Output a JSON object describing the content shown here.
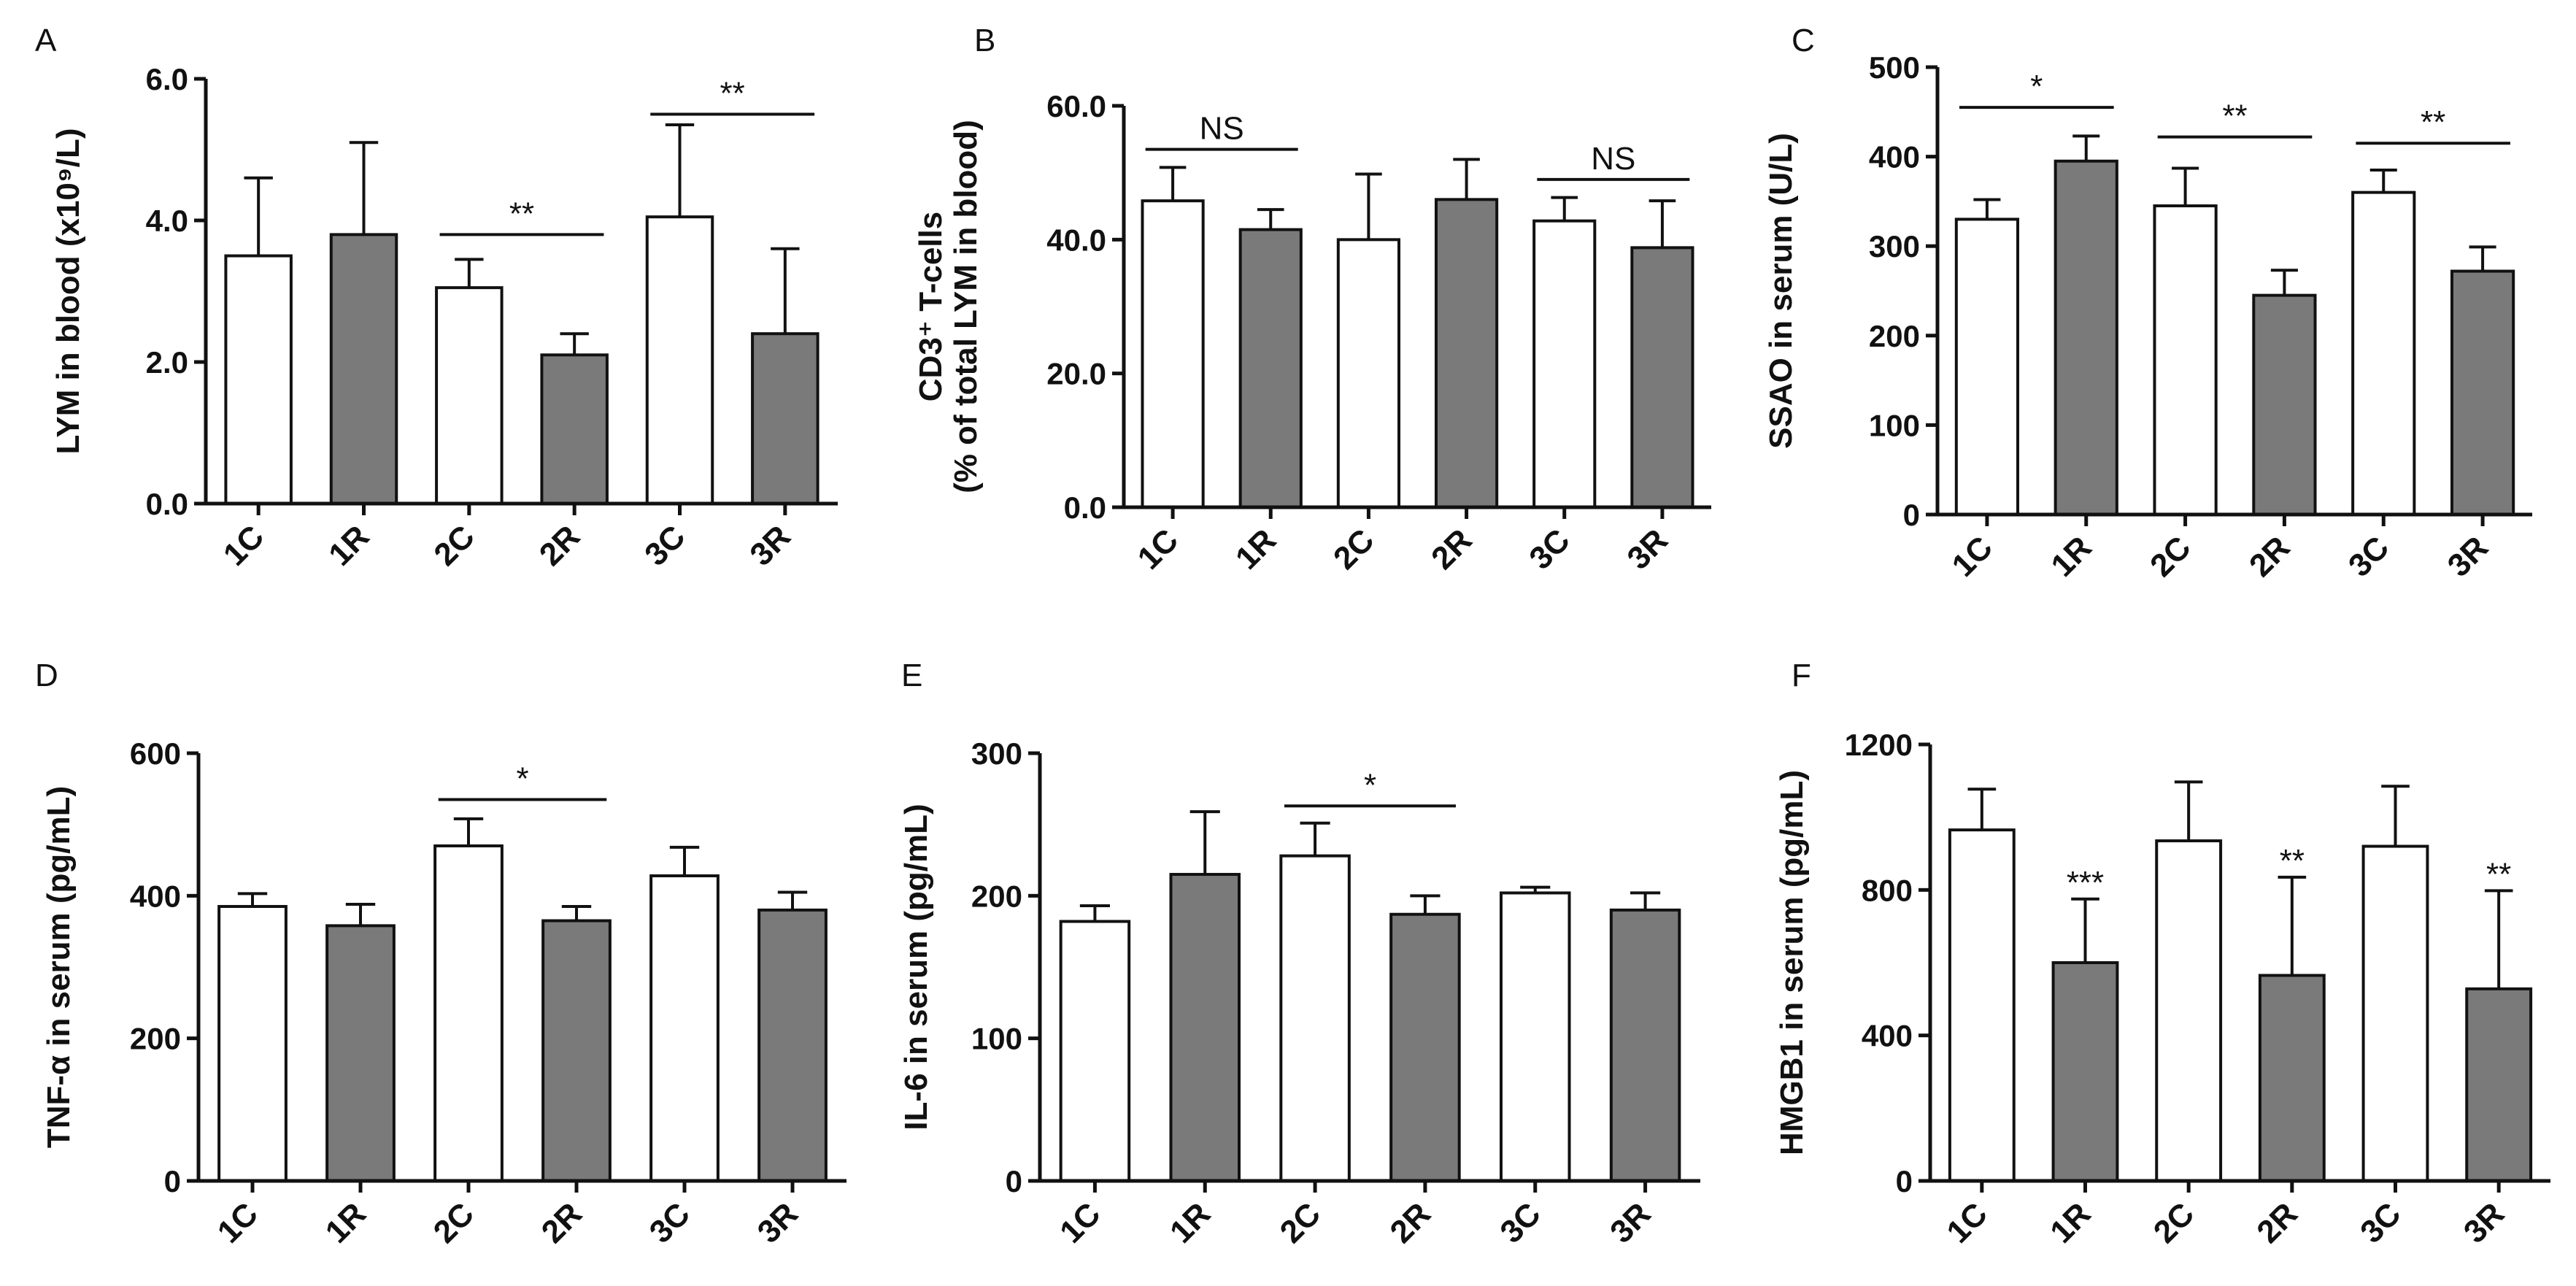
{
  "figure": {
    "colors": {
      "control": "#ffffff",
      "treatment": "#7a7a7a",
      "stroke": "#111111"
    }
  },
  "chart_data": [
    {
      "panel": "A",
      "type": "bar",
      "ylabel": "LYM in blood (x10⁹/L)",
      "ylim": [
        0,
        6
      ],
      "yticks": [
        "0.0",
        "2.0",
        "4.0",
        "6.0"
      ],
      "categories": [
        "1C",
        "1R",
        "2C",
        "2R",
        "3C",
        "3R"
      ],
      "values": [
        3.5,
        3.8,
        3.05,
        2.1,
        4.05,
        2.4
      ],
      "errors": [
        1.1,
        1.3,
        0.4,
        0.3,
        1.3,
        1.2
      ],
      "groups": [
        "C",
        "R",
        "C",
        "R",
        "C",
        "R"
      ],
      "brackets": [
        {
          "from": 2,
          "to": 3,
          "y": 3.8,
          "label": "**"
        },
        {
          "from": 4,
          "to": 5,
          "y": 5.5,
          "label": "**"
        }
      ]
    },
    {
      "panel": "B",
      "type": "bar",
      "ylabel": [
        "CD3⁺ T-cells",
        "(% of total LYM in blood)"
      ],
      "ylim": [
        0,
        60
      ],
      "yticks": [
        "0.0",
        "20.0",
        "40.0",
        "60.0"
      ],
      "categories": [
        "1C",
        "1R",
        "2C",
        "2R",
        "3C",
        "3R"
      ],
      "values": [
        45.8,
        41.5,
        40.0,
        46.0,
        42.8,
        38.8
      ],
      "errors": [
        5,
        3,
        9.8,
        6,
        3.5,
        7
      ],
      "groups": [
        "C",
        "R",
        "C",
        "R",
        "C",
        "R"
      ],
      "brackets": [
        {
          "from": 0,
          "to": 1,
          "y": 53.5,
          "label": "NS"
        },
        {
          "from": 4,
          "to": 5,
          "y": 49,
          "label": "NS"
        }
      ]
    },
    {
      "panel": "C",
      "type": "bar",
      "ylabel": "SSAO in serum (U/L)",
      "ylim": [
        0,
        500
      ],
      "yticks": [
        "0",
        "100",
        "200",
        "300",
        "400",
        "500"
      ],
      "categories": [
        "1C",
        "1R",
        "2C",
        "2R",
        "3C",
        "3R"
      ],
      "values": [
        330,
        395,
        345,
        245,
        360,
        272
      ],
      "errors": [
        22,
        28,
        42,
        28,
        25,
        27
      ],
      "groups": [
        "C",
        "R",
        "C",
        "R",
        "C",
        "R"
      ],
      "brackets": [
        {
          "from": 0,
          "to": 1,
          "y": 455,
          "label": "*"
        },
        {
          "from": 2,
          "to": 3,
          "y": 422,
          "label": "**"
        },
        {
          "from": 4,
          "to": 5,
          "y": 415,
          "label": "**"
        }
      ]
    },
    {
      "panel": "D",
      "type": "bar",
      "ylabel": "TNF-α in serum (pg/mL)",
      "ylim": [
        0,
        600
      ],
      "yticks": [
        "0",
        "200",
        "400",
        "600"
      ],
      "categories": [
        "1C",
        "1R",
        "2C",
        "2R",
        "3C",
        "3R"
      ],
      "values": [
        385,
        358,
        470,
        365,
        428,
        380
      ],
      "errors": [
        18,
        30,
        38,
        20,
        40,
        25
      ],
      "groups": [
        "C",
        "R",
        "C",
        "R",
        "C",
        "R"
      ],
      "brackets": [
        {
          "from": 2,
          "to": 3,
          "y": 535,
          "label": "*"
        }
      ]
    },
    {
      "panel": "E",
      "type": "bar",
      "ylabel": "IL-6 in serum (pg/mL)",
      "ylim": [
        0,
        300
      ],
      "yticks": [
        "0",
        "100",
        "200",
        "300"
      ],
      "categories": [
        "1C",
        "1R",
        "2C",
        "2R",
        "3C",
        "3R"
      ],
      "values": [
        182,
        215,
        228,
        187,
        202,
        190
      ],
      "errors": [
        11,
        44,
        23,
        13,
        4,
        12
      ],
      "groups": [
        "C",
        "R",
        "C",
        "R",
        "C",
        "R"
      ],
      "brackets": [
        {
          "from": 2,
          "to": 3,
          "y": 263,
          "label": "*"
        }
      ]
    },
    {
      "panel": "F",
      "type": "bar",
      "ylabel": "HMGB1 in serum (pg/mL)",
      "ylim": [
        0,
        1200
      ],
      "yticks": [
        "0",
        "400",
        "800",
        "1200"
      ],
      "categories": [
        "1C",
        "1R",
        "2C",
        "2R",
        "3C",
        "3R"
      ],
      "values": [
        965,
        600,
        935,
        565,
        920,
        528
      ],
      "errors": [
        112,
        175,
        162,
        270,
        165,
        270
      ],
      "groups": [
        "C",
        "R",
        "C",
        "R",
        "C",
        "R"
      ],
      "stars": [
        {
          "index": 1,
          "label": "***"
        },
        {
          "index": 3,
          "label": "**"
        },
        {
          "index": 5,
          "label": "**"
        }
      ]
    }
  ]
}
